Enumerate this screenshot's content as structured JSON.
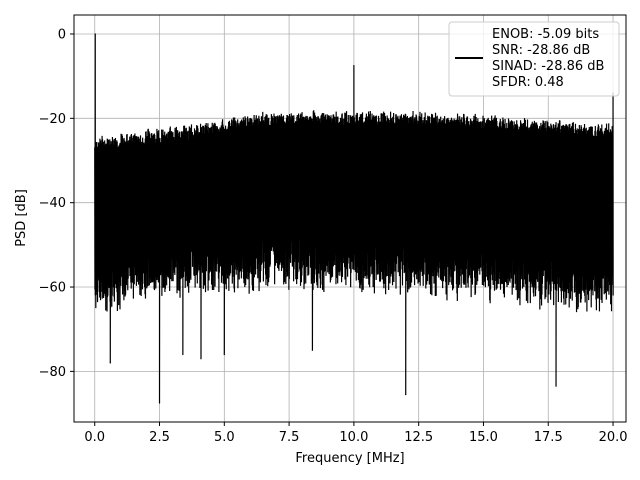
{
  "chart_data": {
    "type": "line",
    "xlabel": "Frequency [MHz]",
    "ylabel": "PSD [dB]",
    "xlim": [
      -0.8,
      20.5
    ],
    "ylim": [
      -92,
      4.5
    ],
    "x_ticks": [
      0.0,
      2.5,
      5.0,
      7.5,
      10.0,
      12.5,
      15.0,
      17.5,
      20.0
    ],
    "x_tick_labels": [
      "0.0",
      "2.5",
      "5.0",
      "7.5",
      "10.0",
      "12.5",
      "15.0",
      "17.5",
      "20.0"
    ],
    "y_ticks": [
      0,
      -20,
      -40,
      -60,
      -80
    ],
    "y_tick_labels": [
      "0",
      "−20",
      "−40",
      "−60",
      "−80"
    ],
    "grid": true,
    "legend_position": "top-right",
    "legend_entries": [
      "ENOB: -5.09 bits",
      "SNR: -28.86 dB",
      "SINAD: -28.86 dB",
      "SFDR: 0.48"
    ],
    "series": [
      {
        "color": "#000000",
        "noise_envelope": {
          "x": [
            0,
            2.5,
            5,
            6.5,
            10,
            12.5,
            15,
            17.5,
            20
          ],
          "upper": [
            -24,
            -22,
            -20,
            -18,
            -18,
            -18,
            -19,
            -20,
            -21
          ],
          "lower": [
            -62,
            -58,
            -57,
            -56,
            -56,
            -57,
            -58,
            -60,
            -62
          ]
        },
        "peaks": [
          {
            "x": 0.02,
            "y": 0
          },
          {
            "x": 10.0,
            "y": -7.5
          },
          {
            "x": 20.0,
            "y": -14
          }
        ],
        "dips": [
          {
            "x": 2.5,
            "y": -87.5
          },
          {
            "x": 12.0,
            "y": -85.5
          },
          {
            "x": 17.8,
            "y": -83.5
          },
          {
            "x": 0.6,
            "y": -78
          },
          {
            "x": 4.1,
            "y": -77
          },
          {
            "x": 5.0,
            "y": -76
          },
          {
            "x": 8.4,
            "y": -75
          },
          {
            "x": 3.4,
            "y": -76
          }
        ]
      }
    ]
  }
}
